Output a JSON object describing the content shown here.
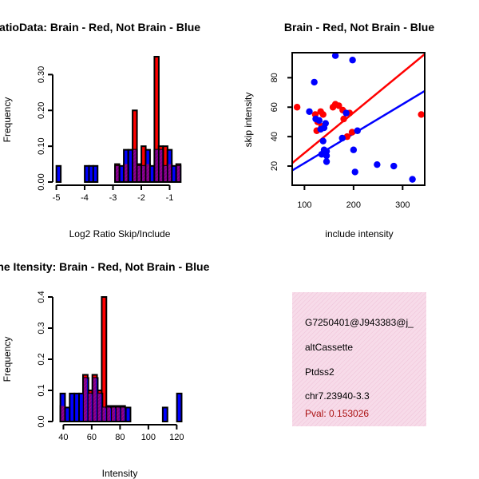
{
  "chart_data": [
    {
      "id": "ratio",
      "type": "bar",
      "title": "RatioData: Brain - Red, Not Brain - Blue",
      "xlabel": "Log2 Ratio Skip/Include",
      "ylabel": "Frequency",
      "xlim": [
        -5.1,
        -0.45
      ],
      "ylim": [
        0,
        0.35
      ],
      "xticks": [
        -5,
        -4,
        -3,
        -2,
        -1
      ],
      "yticks": [
        0.0,
        0.1,
        0.2,
        0.3
      ],
      "ytick_labels": [
        "0.00",
        "0.10",
        "0.20",
        "0.30"
      ],
      "bin_width": 0.154,
      "series": [
        {
          "name": "Brain",
          "color": "#ff0000",
          "bars": [
            [
              -2.85,
              0.05
            ],
            [
              -2.54,
              0.05
            ],
            [
              -2.23,
              0.2
            ],
            [
              -2.08,
              0.05
            ],
            [
              -1.92,
              0.1
            ],
            [
              -1.77,
              0.05
            ],
            [
              -1.46,
              0.35
            ],
            [
              -1.31,
              0.1
            ],
            [
              -1.15,
              0.1
            ],
            [
              -1.0,
              0.05
            ],
            [
              -0.69,
              0.05
            ]
          ]
        },
        {
          "name": "Not Brain",
          "color": "#0000ff",
          "bars": [
            [
              -4.92,
              0.045
            ],
            [
              -3.92,
              0.045
            ],
            [
              -3.77,
              0.045
            ],
            [
              -3.62,
              0.045
            ],
            [
              -2.85,
              0.045
            ],
            [
              -2.69,
              0.045
            ],
            [
              -2.54,
              0.09
            ],
            [
              -2.38,
              0.09
            ],
            [
              -2.23,
              0.09
            ],
            [
              -2.08,
              0.045
            ],
            [
              -1.92,
              0.045
            ],
            [
              -1.77,
              0.09
            ],
            [
              -1.62,
              0.045
            ],
            [
              -1.46,
              0.09
            ],
            [
              -1.31,
              0.09
            ],
            [
              -1.15,
              0.045
            ],
            [
              -1.0,
              0.09
            ],
            [
              -0.85,
              0.045
            ],
            [
              -0.69,
              0.045
            ]
          ]
        }
      ]
    },
    {
      "id": "scatter",
      "type": "scatter",
      "title": "Brain - Red, Not Brain - Blue",
      "xlabel": "include intensity",
      "ylabel": "skip intensity",
      "xlim": [
        75,
        345
      ],
      "ylim": [
        7,
        97
      ],
      "xticks": [
        100,
        200,
        300
      ],
      "yticks": [
        20,
        40,
        60,
        80
      ],
      "series": [
        {
          "name": "Brain",
          "color": "#ff0000",
          "points": [
            [
              85,
              60
            ],
            [
              122,
              55
            ],
            [
              125,
              44
            ],
            [
              127,
              50
            ],
            [
              133,
              57
            ],
            [
              135,
              47
            ],
            [
              138,
              55
            ],
            [
              158,
              60
            ],
            [
              163,
              62
            ],
            [
              170,
              61
            ],
            [
              178,
              58
            ],
            [
              180,
              52
            ],
            [
              187,
              40
            ],
            [
              192,
              56
            ],
            [
              197,
              43
            ],
            [
              338,
              55
            ]
          ],
          "fit": [
            [
              75,
              22
            ],
            [
              345,
              96
            ]
          ]
        },
        {
          "name": "Not Brain",
          "color": "#0000ff",
          "points": [
            [
              110,
              57
            ],
            [
              120,
              77
            ],
            [
              123,
              52
            ],
            [
              130,
              51
            ],
            [
              133,
              45
            ],
            [
              135,
              28
            ],
            [
              138,
              37
            ],
            [
              140,
              46
            ],
            [
              140,
              31
            ],
            [
              143,
              49
            ],
            [
              145,
              30
            ],
            [
              145,
              27
            ],
            [
              145,
              23
            ],
            [
              163,
              95
            ],
            [
              177,
              39
            ],
            [
              185,
              56
            ],
            [
              198,
              92
            ],
            [
              200,
              31
            ],
            [
              203,
              16
            ],
            [
              208,
              44
            ],
            [
              248,
              21
            ],
            [
              282,
              20
            ],
            [
              320,
              11
            ]
          ],
          "fit": [
            [
              75,
              17
            ],
            [
              345,
              71
            ]
          ]
        }
      ]
    },
    {
      "id": "intensity",
      "type": "bar",
      "title": "Gene Itensity: Brain - Red, Not Brain - Blue",
      "xlabel": "Intensity",
      "ylabel": "Frequency",
      "xlim": [
        33,
        126
      ],
      "ylim": [
        0,
        0.4
      ],
      "xticks": [
        40,
        60,
        80,
        100,
        120
      ],
      "yticks": [
        0.0,
        0.1,
        0.2,
        0.3,
        0.4
      ],
      "ytick_labels": [
        "0.0",
        "0.1",
        "0.2",
        "0.3",
        "0.4"
      ],
      "bin_width": 3.3,
      "series": [
        {
          "name": "Brain",
          "color": "#ff0000",
          "bars": [
            [
              39.5,
              0.05
            ],
            [
              55.5,
              0.15
            ],
            [
              58.8,
              0.1
            ],
            [
              62.1,
              0.15
            ],
            [
              65.4,
              0.1
            ],
            [
              68.7,
              0.4
            ],
            [
              72.0,
              0.05
            ],
            [
              75.3,
              0.05
            ],
            [
              78.6,
              0.05
            ],
            [
              81.9,
              0.05
            ]
          ]
        },
        {
          "name": "Not Brain",
          "color": "#0000ff",
          "bars": [
            [
              39.5,
              0.09
            ],
            [
              42.8,
              0.045
            ],
            [
              46.1,
              0.09
            ],
            [
              49.4,
              0.09
            ],
            [
              52.7,
              0.09
            ],
            [
              56.0,
              0.14
            ],
            [
              59.3,
              0.09
            ],
            [
              62.6,
              0.14
            ],
            [
              65.9,
              0.09
            ],
            [
              69.2,
              0.045
            ],
            [
              72.5,
              0.045
            ],
            [
              75.8,
              0.045
            ],
            [
              79.1,
              0.045
            ],
            [
              82.4,
              0.045
            ],
            [
              85.7,
              0.045
            ],
            [
              111.8,
              0.045
            ],
            [
              121.8,
              0.09
            ]
          ]
        }
      ]
    }
  ],
  "info_box": {
    "event_id": "G7250401@J943383@j_",
    "event_type": "altCassette",
    "gene": "Ptdss2",
    "location": "chr7.23940-3.3",
    "pval": "Pval: 0.153026",
    "background": "#f5d6e6",
    "pval_color": "#aa1010"
  },
  "colors": {
    "brain": "#ff0000",
    "not_brain": "#0000ff",
    "overlap": "#800080"
  }
}
